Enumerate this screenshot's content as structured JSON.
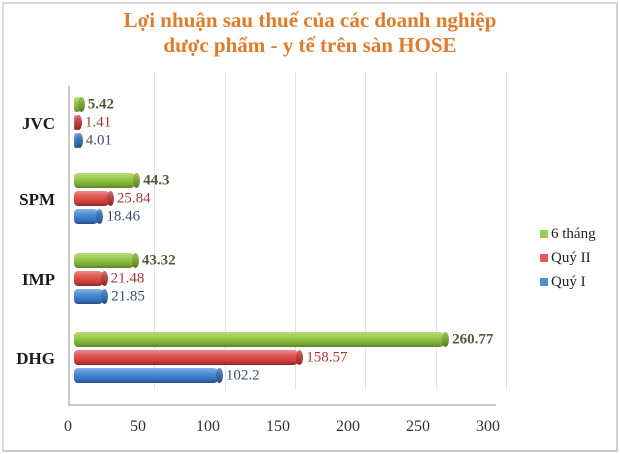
{
  "chart_data": {
    "type": "bar",
    "orientation": "horizontal",
    "title": "Lợi nhuận sau thuế của các doanh nghiệp dược phẩm - y tế trên sàn HOSE",
    "title_lines": [
      "Lợi nhuận sau thuế của các doanh nghiệp",
      "dược phẩm - y tế trên sàn HOSE"
    ],
    "categories": [
      "JVC",
      "SPM",
      "IMP",
      "DHG"
    ],
    "series": [
      {
        "name": "6 tháng",
        "color": "#9acd4c",
        "values": [
          5.42,
          44.3,
          43.32,
          260.77
        ]
      },
      {
        "name": "Quý II",
        "color": "#e15a57",
        "values": [
          1.41,
          25.84,
          21.48,
          158.57
        ]
      },
      {
        "name": "Quý I",
        "color": "#4f8ed6",
        "values": [
          4.01,
          18.46,
          21.85,
          102.2
        ]
      }
    ],
    "xlabel": "",
    "ylabel": "",
    "xlim": [
      0,
      300
    ],
    "x_ticks": [
      "0",
      "50",
      "100",
      "150",
      "200",
      "250",
      "300"
    ],
    "grid": true,
    "legend_position": "right",
    "style": "3d-cylinder",
    "title_color": "#e07b29"
  },
  "legend": [
    {
      "label": "6 tháng",
      "color": "#9acd4c"
    },
    {
      "label": "Quý II",
      "color": "#e15a57"
    },
    {
      "label": "Quý I",
      "color": "#4f8ed6"
    }
  ]
}
